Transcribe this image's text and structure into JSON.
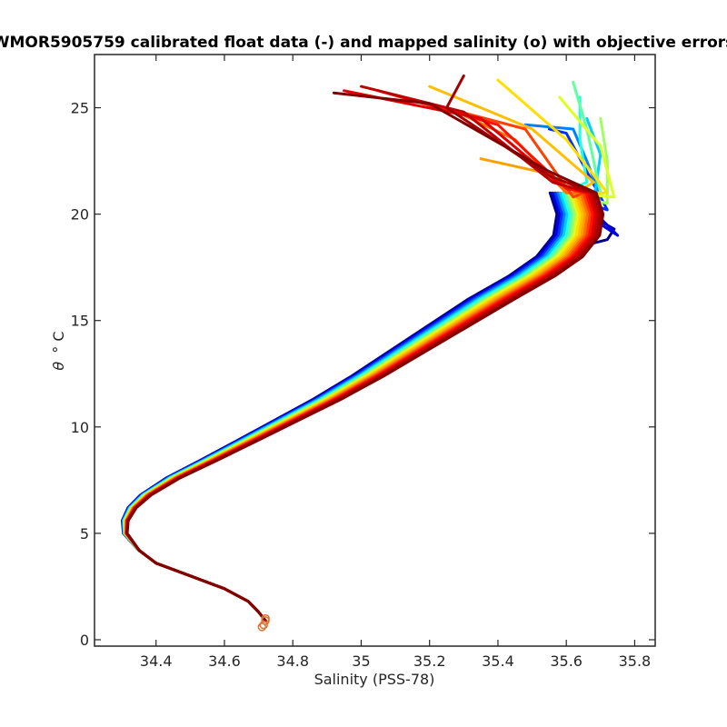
{
  "chart_data": {
    "type": "line",
    "title": "WMOR5905759 calibrated float data (-) and mapped salinity (o) with objective errors",
    "xlabel": "Salinity (PSS-78)",
    "ylabel_symbol": "θ",
    "ylabel_unit": "° C",
    "xlim": [
      34.22,
      35.86
    ],
    "ylim": [
      -0.3,
      27.5
    ],
    "xticks": [
      "34.4",
      "34.6",
      "34.8",
      "35",
      "35.2",
      "35.4",
      "35.6",
      "35.8"
    ],
    "xtick_values": [
      34.4,
      34.6,
      34.8,
      35.0,
      35.2,
      35.4,
      35.6,
      35.8
    ],
    "yticks": [
      "0",
      "5",
      "10",
      "15",
      "20",
      "25"
    ],
    "ytick_values": [
      0,
      5,
      10,
      15,
      20,
      25
    ],
    "grid": false,
    "colormap": "jet (profile order: early = blue, late = dark red)",
    "base_profile": [
      [
        34.72,
        0.9
      ],
      [
        34.7,
        1.3
      ],
      [
        34.67,
        1.8
      ],
      [
        34.6,
        2.4
      ],
      [
        34.5,
        3.0
      ],
      [
        34.4,
        3.6
      ],
      [
        34.35,
        4.2
      ],
      [
        34.31,
        5.0
      ],
      [
        34.31,
        5.6
      ],
      [
        34.33,
        6.2
      ],
      [
        34.37,
        6.8
      ],
      [
        34.45,
        7.6
      ],
      [
        34.55,
        8.4
      ],
      [
        34.66,
        9.3
      ],
      [
        34.78,
        10.3
      ],
      [
        34.9,
        11.3
      ],
      [
        35.02,
        12.4
      ],
      [
        35.14,
        13.6
      ],
      [
        35.26,
        14.8
      ],
      [
        35.38,
        16.0
      ],
      [
        35.5,
        17.1
      ],
      [
        35.58,
        18.0
      ],
      [
        35.63,
        19.0
      ],
      [
        35.64,
        20.0
      ],
      [
        35.62,
        21.0
      ]
    ],
    "series": [
      {
        "color": "#00008f",
        "top": [
          [
            35.74,
            19.3
          ],
          [
            35.72,
            18.8
          ],
          [
            35.62,
            18.4
          ]
        ]
      },
      {
        "color": "#0000df",
        "top": [
          [
            35.75,
            19.0
          ],
          [
            35.7,
            19.8
          ],
          [
            35.65,
            20.4
          ]
        ]
      },
      {
        "color": "#0030ff",
        "top": [
          [
            35.72,
            20.2
          ],
          [
            35.66,
            22.0
          ],
          [
            35.6,
            23.8
          ],
          [
            35.55,
            24.0
          ]
        ]
      },
      {
        "color": "#0080ff",
        "top": [
          [
            35.7,
            20.8
          ],
          [
            35.66,
            22.5
          ],
          [
            35.62,
            24.0
          ],
          [
            35.48,
            24.2
          ]
        ]
      },
      {
        "color": "#00cfff",
        "top": [
          [
            35.68,
            20.6
          ],
          [
            35.7,
            22.8
          ],
          [
            35.66,
            24.5
          ]
        ]
      },
      {
        "color": "#20ffdf",
        "top": [
          [
            35.66,
            21.5
          ],
          [
            35.64,
            23.5
          ],
          [
            35.64,
            25.5
          ]
        ]
      },
      {
        "color": "#60ff9f",
        "top": [
          [
            35.7,
            21.0
          ],
          [
            35.66,
            24.0
          ],
          [
            35.62,
            26.2
          ]
        ]
      },
      {
        "color": "#9fff60",
        "top": [
          [
            35.72,
            20.5
          ],
          [
            35.72,
            22.5
          ],
          [
            35.7,
            24.5
          ]
        ]
      },
      {
        "color": "#dfff20",
        "top": [
          [
            35.74,
            20.8
          ],
          [
            35.7,
            23.2
          ],
          [
            35.58,
            25.5
          ]
        ]
      },
      {
        "color": "#ffdf00",
        "top": [
          [
            35.72,
            21.0
          ],
          [
            35.6,
            23.5
          ],
          [
            35.4,
            26.3
          ]
        ]
      },
      {
        "color": "#ffbf00",
        "top": [
          [
            35.68,
            21.5
          ],
          [
            35.5,
            24.0
          ],
          [
            35.2,
            26.0
          ]
        ]
      },
      {
        "color": "#ff9f00",
        "top": [
          [
            35.66,
            20.5
          ],
          [
            35.52,
            22.0
          ],
          [
            35.35,
            22.6
          ]
        ]
      },
      {
        "color": "#ff7000",
        "top": [
          [
            35.6,
            21.0
          ],
          [
            35.45,
            23.5
          ],
          [
            35.28,
            24.8
          ]
        ]
      },
      {
        "color": "#ff4000",
        "top": [
          [
            35.62,
            20.8
          ],
          [
            35.48,
            24.0
          ],
          [
            35.15,
            25.4
          ]
        ]
      },
      {
        "color": "#ff1000",
        "top": [
          [
            35.6,
            21.2
          ],
          [
            35.4,
            24.2
          ],
          [
            35.05,
            25.8
          ]
        ]
      },
      {
        "color": "#df0000",
        "top": [
          [
            35.58,
            21.4
          ],
          [
            35.35,
            24.5
          ],
          [
            34.95,
            25.8
          ]
        ]
      },
      {
        "color": "#bf0000",
        "top": [
          [
            35.56,
            21.5
          ],
          [
            35.3,
            24.8
          ],
          [
            35.0,
            26.0
          ]
        ]
      },
      {
        "color": "#a00000",
        "top": [
          [
            35.55,
            21.8
          ],
          [
            35.25,
            25.0
          ],
          [
            35.3,
            26.5
          ]
        ]
      },
      {
        "color": "#800000",
        "top": [
          [
            35.55,
            22.0
          ],
          [
            35.2,
            25.2
          ],
          [
            34.92,
            25.7
          ]
        ]
      }
    ],
    "mapped_points_color": "#e07030",
    "mapped_points": [
      [
        34.715,
        0.7
      ],
      [
        34.72,
        0.9
      ],
      [
        34.71,
        0.6
      ],
      [
        34.72,
        1.0
      ]
    ]
  }
}
